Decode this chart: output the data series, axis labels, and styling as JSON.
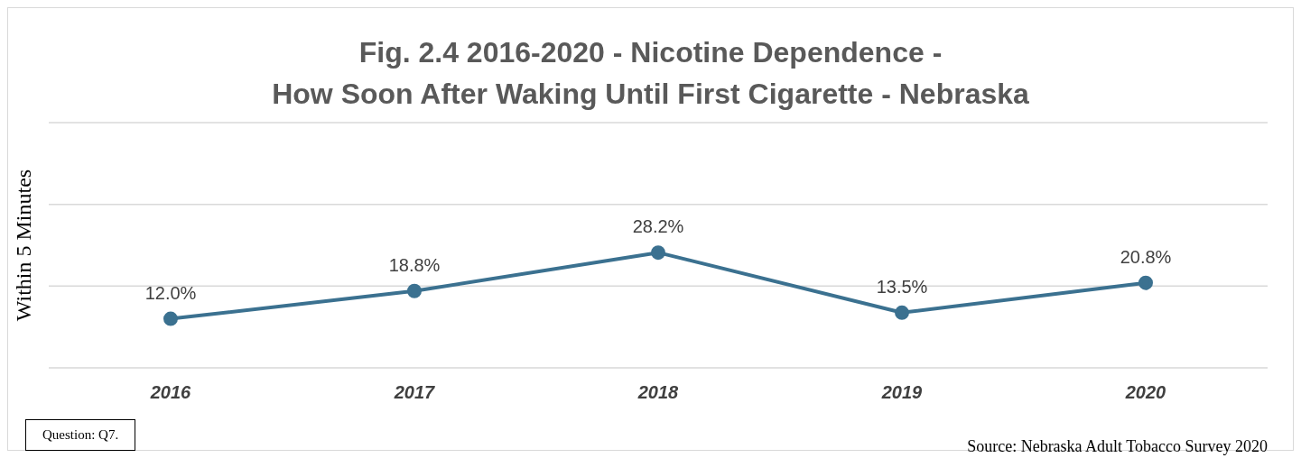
{
  "chart_data": {
    "type": "line",
    "title": "Fig. 2.4  2016-2020 - Nicotine Dependence -\nHow Soon After Waking Until First Cigarette - Nebraska",
    "ylabel": "Within 5 Minutes",
    "categories": [
      "2016",
      "2017",
      "2018",
      "2019",
      "2020"
    ],
    "series": [
      {
        "color": "#3b7190",
        "values": [
          12.0,
          18.8,
          28.2,
          13.5,
          20.8
        ],
        "value_labels": [
          "12.0%",
          "18.8%",
          "28.2%",
          "13.5%",
          "20.8%"
        ]
      }
    ],
    "ylim": [
      0,
      60
    ],
    "yticks": [
      {
        "value": 0,
        "label": null
      },
      {
        "value": 20,
        "label": null
      },
      {
        "value": 40,
        "label": null
      },
      {
        "value": 60,
        "label": null
      }
    ],
    "tick_labels": "x",
    "grid": "y",
    "marker": "circle",
    "line_style": "solid",
    "annotations": [
      "Question: Q7.",
      "Source: Nebraska Adult Tobacco Survey 2020"
    ]
  }
}
